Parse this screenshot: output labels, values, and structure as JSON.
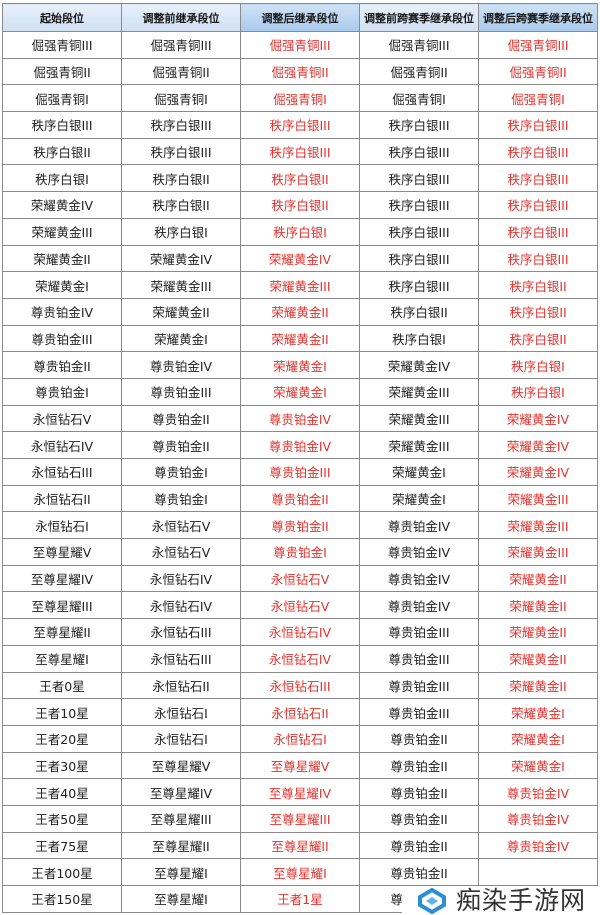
{
  "headers": [
    "起始段位",
    "调整前继承段位",
    "调整后继承段位",
    "调整前跨赛季继承段位",
    "调整后跨赛季继承段位"
  ],
  "highlight_color": "#e5322d",
  "rows": [
    [
      "倔强青铜III",
      "倔强青铜III",
      "倔强青铜III",
      "倔强青铜III",
      "倔强青铜III"
    ],
    [
      "倔强青铜II",
      "倔强青铜II",
      "倔强青铜II",
      "倔强青铜II",
      "倔强青铜II"
    ],
    [
      "倔强青铜I",
      "倔强青铜I",
      "倔强青铜I",
      "倔强青铜I",
      "倔强青铜I"
    ],
    [
      "秩序白银III",
      "秩序白银III",
      "秩序白银III",
      "秩序白银III",
      "秩序白银III"
    ],
    [
      "秩序白银II",
      "秩序白银III",
      "秩序白银III",
      "秩序白银III",
      "秩序白银III"
    ],
    [
      "秩序白银I",
      "秩序白银II",
      "秩序白银II",
      "秩序白银III",
      "秩序白银III"
    ],
    [
      "荣耀黄金IV",
      "秩序白银II",
      "秩序白银II",
      "秩序白银III",
      "秩序白银III"
    ],
    [
      "荣耀黄金III",
      "秩序白银I",
      "秩序白银I",
      "秩序白银III",
      "秩序白银III"
    ],
    [
      "荣耀黄金II",
      "荣耀黄金IV",
      "荣耀黄金IV",
      "秩序白银III",
      "秩序白银III"
    ],
    [
      "荣耀黄金I",
      "荣耀黄金III",
      "荣耀黄金III",
      "秩序白银III",
      "秩序白银II"
    ],
    [
      "尊贵铂金IV",
      "荣耀黄金II",
      "荣耀黄金II",
      "秩序白银II",
      "秩序白银II"
    ],
    [
      "尊贵铂金III",
      "荣耀黄金I",
      "荣耀黄金II",
      "秩序白银I",
      "秩序白银II"
    ],
    [
      "尊贵铂金II",
      "尊贵铂金IV",
      "荣耀黄金I",
      "荣耀黄金IV",
      "秩序白银I"
    ],
    [
      "尊贵铂金I",
      "尊贵铂金III",
      "荣耀黄金I",
      "荣耀黄金III",
      "秩序白银I"
    ],
    [
      "永恒钻石V",
      "尊贵铂金II",
      "尊贵铂金IV",
      "荣耀黄金III",
      "荣耀黄金IV"
    ],
    [
      "永恒钻石IV",
      "尊贵铂金II",
      "尊贵铂金IV",
      "荣耀黄金III",
      "荣耀黄金IV"
    ],
    [
      "永恒钻石III",
      "尊贵铂金I",
      "尊贵铂金III",
      "荣耀黄金I",
      "荣耀黄金IV"
    ],
    [
      "永恒钻石II",
      "尊贵铂金I",
      "尊贵铂金II",
      "荣耀黄金I",
      "荣耀黄金III"
    ],
    [
      "永恒钻石I",
      "永恒钻石V",
      "尊贵铂金II",
      "尊贵铂金IV",
      "荣耀黄金III"
    ],
    [
      "至尊星耀V",
      "永恒钻石V",
      "尊贵铂金I",
      "尊贵铂金IV",
      "荣耀黄金III"
    ],
    [
      "至尊星耀IV",
      "永恒钻石IV",
      "永恒钻石V",
      "尊贵铂金IV",
      "荣耀黄金II"
    ],
    [
      "至尊星耀III",
      "永恒钻石IV",
      "永恒钻石V",
      "尊贵铂金IV",
      "荣耀黄金II"
    ],
    [
      "至尊星耀II",
      "永恒钻石III",
      "永恒钻石IV",
      "尊贵铂金III",
      "荣耀黄金II"
    ],
    [
      "至尊星耀I",
      "永恒钻石III",
      "永恒钻石IV",
      "尊贵铂金III",
      "荣耀黄金II"
    ],
    [
      "王者0星",
      "永恒钻石II",
      "永恒钻石III",
      "尊贵铂金III",
      "荣耀黄金II"
    ],
    [
      "王者10星",
      "永恒钻石I",
      "永恒钻石II",
      "尊贵铂金III",
      "荣耀黄金I"
    ],
    [
      "王者20星",
      "永恒钻石I",
      "永恒钻石I",
      "尊贵铂金II",
      "荣耀黄金I"
    ],
    [
      "王者30星",
      "至尊星耀V",
      "至尊星耀V",
      "尊贵铂金II",
      "荣耀黄金I"
    ],
    [
      "王者40星",
      "至尊星耀IV",
      "至尊星耀IV",
      "尊贵铂金II",
      "尊贵铂金IV"
    ],
    [
      "王者50星",
      "至尊星耀III",
      "至尊星耀III",
      "尊贵铂金II",
      "尊贵铂金IV"
    ],
    [
      "王者75星",
      "至尊星耀II",
      "至尊星耀II",
      "尊贵铂金II",
      "尊贵铂金IV"
    ],
    [
      "王者100星",
      "至尊星耀I",
      "至尊星耀I",
      "尊贵铂金II",
      ""
    ],
    [
      "王者150星",
      "至尊星耀I",
      "王者1星",
      "尊贵铂金II",
      ""
    ]
  ],
  "watermark": {
    "text": "痴染手游网",
    "color": "#2b8fd6"
  }
}
